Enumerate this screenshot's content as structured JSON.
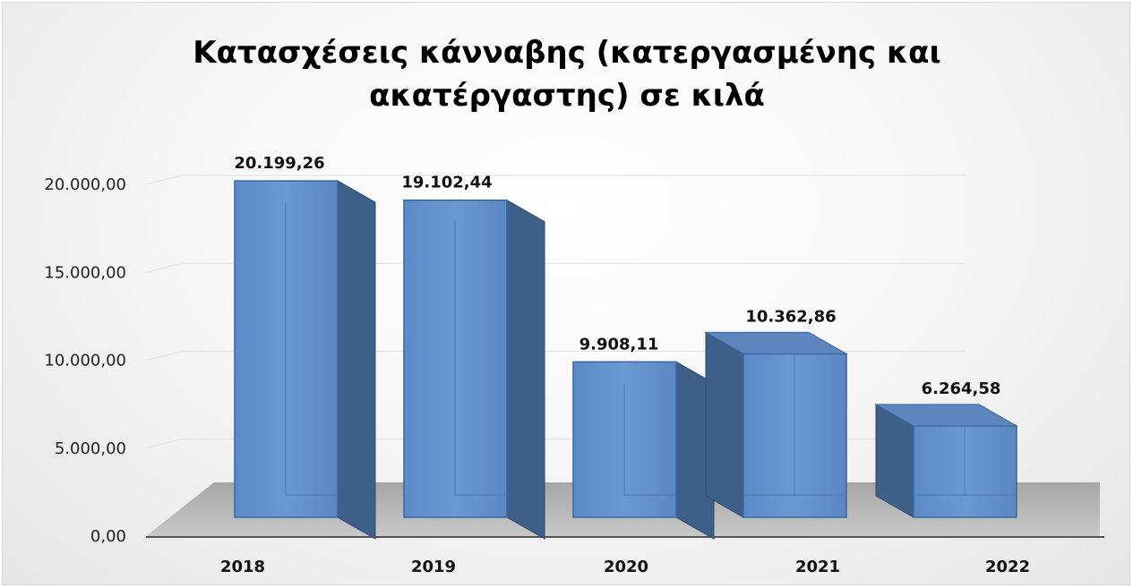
{
  "chart_data": {
    "type": "bar",
    "style": "3d-column",
    "title": "Κατασχέσεις κάνναβης (κατεργασμένης και ακατέργαστης) σε κιλά",
    "categories": [
      "2018",
      "2019",
      "2020",
      "2021",
      "2022"
    ],
    "series": [
      {
        "values": [
          20199.26,
          19102.44,
          9908.11,
          10362.86,
          6264.58
        ],
        "labels": [
          "20.199,26",
          "19.102,44",
          "9.908,11",
          "10.362,86",
          "6.264,58"
        ],
        "color": "#4f81bd"
      }
    ],
    "yticks": [
      0,
      5000,
      10000,
      15000,
      20000
    ],
    "ytick_labels": [
      "0,00",
      "5.000,00",
      "10.000,00",
      "15.000,00",
      "20.000,00"
    ],
    "ylim": [
      0,
      20000
    ],
    "xlabel": "",
    "ylabel": "",
    "grid": true,
    "legend": "none"
  }
}
